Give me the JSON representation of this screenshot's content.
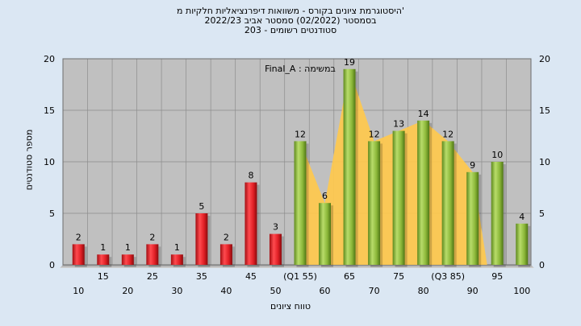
{
  "chart_data": {
    "type": "bar",
    "title_lines": [
      "היסטוגרמת ציונים בקורס - משוואות דיפרנציאליות חלקיות מ'",
      "בסמסטר  (02/2022)  סמסטר אביב 2022/23",
      "סטודנטים רשומים - 203"
    ],
    "annotation": "במשימה : Final_A",
    "xlabel": "טווח ציונים",
    "ylabel": "מספר סטודנטים",
    "ylim": [
      0,
      20
    ],
    "yticks": [
      0,
      5,
      10,
      15,
      20
    ],
    "grid": true,
    "categories": [
      "10",
      "15",
      "20",
      "25",
      "30",
      "35",
      "40",
      "45",
      "50",
      "(Q1 55)",
      "60",
      "65",
      "70",
      "75",
      "80",
      "(Q3 85)",
      "90",
      "95",
      "100"
    ],
    "values": [
      2,
      1,
      1,
      2,
      1,
      5,
      2,
      8,
      3,
      12,
      6,
      19,
      12,
      13,
      14,
      12,
      9,
      10,
      4
    ],
    "colors": {
      "failing": "#e8262b",
      "passing": "#8fbb3d",
      "area": "#ffc94d",
      "plot_bg": "#c0c0c0",
      "page_bg": "#dbe7f3"
    }
  }
}
